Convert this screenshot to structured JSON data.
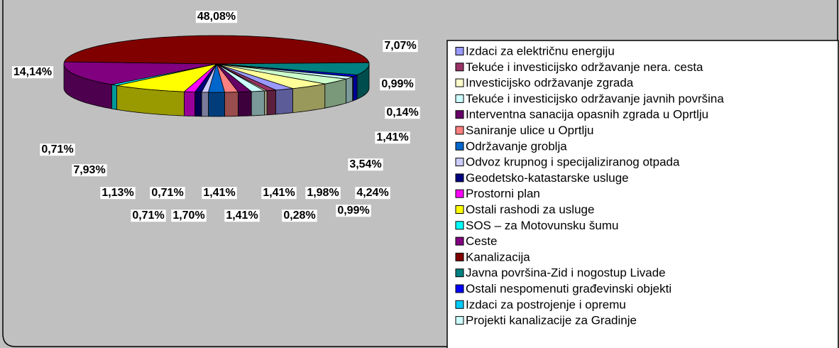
{
  "chart_data": {
    "type": "pie3d",
    "categories": [
      "Izdaci za električnu energiju",
      "Tekuće i investicijsko održavanje nera. cesta",
      "Investicijsko održavanje zgrada",
      "Tekuće i investicijsko održavanje javnih površina",
      "Interventna sanacija opasnih zgrada u Oprtlju",
      "Saniranje ulice u Oprtlju",
      "Održavanje groblja",
      "Odvoz krupnog i specijaliziranog otpada",
      "Geodetsko-katastarske usluge",
      " Prostorni plan",
      "Ostali rashodi za usluge",
      "SOS – za Motovunsku šumu",
      "Ceste",
      "Kanalizacija",
      "Javna površina-Zid i nogostup Livade",
      "Ostali nespomenuti građevinski objekti",
      "Izdaci za postrojenje i opremu",
      "Projekti kanalizacije za Gradinje",
      null,
      null
    ],
    "values": [
      1.98,
      0.99,
      0.28,
      1.41,
      1.41,
      1.41,
      1.7,
      0.71,
      0.71,
      1.13,
      7.93,
      0.71,
      14.14,
      48.08,
      7.07,
      0.99,
      0.14,
      1.41,
      3.54,
      4.24
    ],
    "value_labels": [
      "1,98%",
      "0,99%",
      "0,28%",
      "1,41%",
      "1,41%",
      "1,41%",
      "1,70%",
      "0,71%",
      "0,71%",
      "1,13%",
      "7,93%",
      "0,71%",
      "14,14%",
      "48,08%",
      "7,07%",
      "0,99%",
      "0,14%",
      "1,41%",
      "3,54%",
      "4,24%"
    ],
    "colors": [
      "#9999ff",
      "#993366",
      "#ffffcc",
      "#ccffff",
      "#660066",
      "#ff8080",
      "#0066cc",
      "#ccccff",
      "#000080",
      "#ff00ff",
      "#ffff00",
      "#00ffff",
      "#800080",
      "#800000",
      "#008080",
      "#0000ff",
      "#00ccff",
      "#ccffff",
      "#ccffcc",
      "#ffff99"
    ],
    "legend": "right"
  }
}
